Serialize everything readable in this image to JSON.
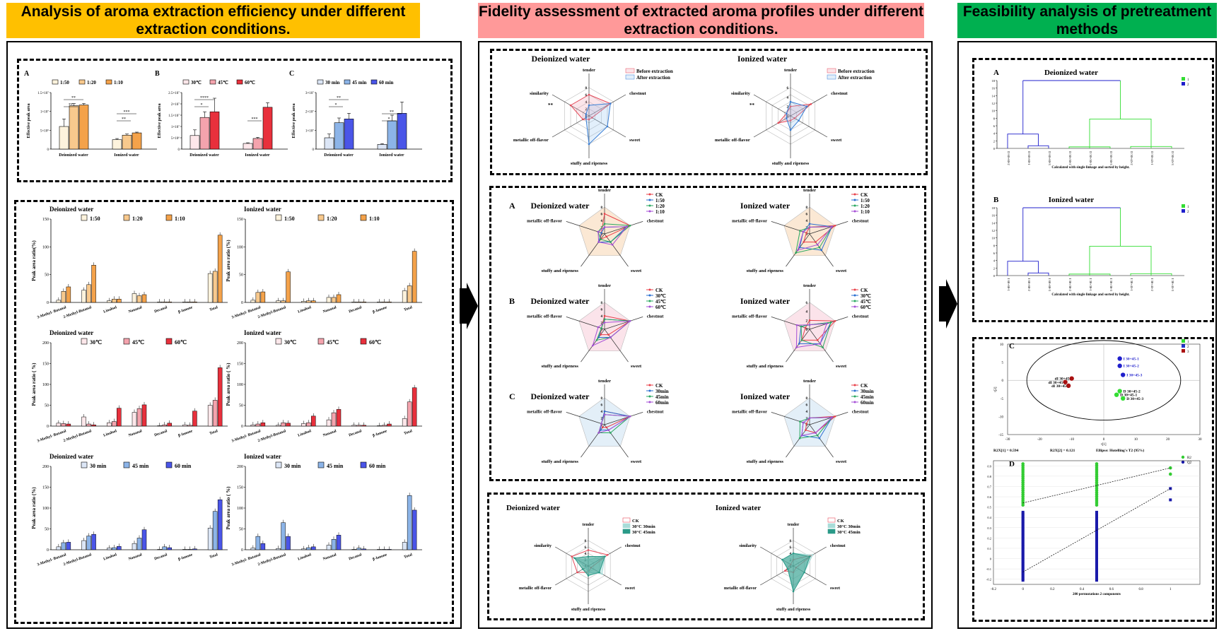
{
  "banners": [
    {
      "text": "Analysis of aroma extraction efficiency under different extraction conditions.",
      "color": "#ffc000"
    },
    {
      "text": "Fidelity assessment of extracted aroma profiles under different extraction conditions.",
      "color": "#ff9999"
    },
    {
      "text": "Feasibility analysis of pretreatment methods",
      "color": "#00b050"
    }
  ],
  "top_bars": [
    {
      "letter": "A",
      "legend": [
        "1:50",
        "1:20",
        "1:10"
      ],
      "colors": [
        "#fdf3dd",
        "#f8c98d",
        "#f4a24a"
      ],
      "ylabel": "Effective peak area",
      "yticks": [
        "0",
        "5×10⁶",
        "1×10⁷",
        "1.5×10⁷"
      ],
      "ymax": 15,
      "groups": [
        "Deionized water",
        "Ionized water"
      ],
      "values": [
        [
          6,
          11.5,
          11.7
        ],
        [
          2.5,
          3.7,
          4.3
        ]
      ],
      "errs": [
        [
          2,
          0.6,
          0.4
        ],
        [
          0.3,
          0.3,
          0.2
        ]
      ],
      "sig": [
        "**",
        "**",
        "**",
        "***"
      ]
    },
    {
      "letter": "B",
      "legend": [
        "30℃",
        "45℃",
        "60℃"
      ],
      "colors": [
        "#fde7ea",
        "#f4a3ad",
        "#e8303c"
      ],
      "ylabel": "Effective peak area",
      "yticks": [
        "0",
        "5×10⁶",
        "1×10⁷",
        "1.5×10⁷",
        "2×10⁷",
        "2.5×10⁷"
      ],
      "ymax": 25,
      "groups": [
        "Deionized water",
        "Ionized water"
      ],
      "values": [
        [
          6,
          14,
          16.5
        ],
        [
          2.5,
          4.7,
          18.5
        ]
      ],
      "errs": [
        [
          2.5,
          2.5,
          6
        ],
        [
          0.3,
          0.5,
          2
        ]
      ],
      "sig": [
        "*",
        "****",
        "***"
      ]
    },
    {
      "letter": "C",
      "legend": [
        "30 min",
        "45 min",
        "60 min"
      ],
      "colors": [
        "#dce6f6",
        "#8cb4e8",
        "#4a55e8"
      ],
      "ylabel": "Effective peak area",
      "yticks": [
        "0",
        "1×10⁷",
        "2×10⁷",
        "3×10⁷"
      ],
      "ymax": 30,
      "groups": [
        "Deionized water",
        "Ionized water"
      ],
      "values": [
        [
          6,
          14,
          16
        ],
        [
          2.5,
          15,
          19
        ]
      ],
      "errs": [
        [
          2,
          2.5,
          3
        ],
        [
          0.4,
          3,
          6
        ]
      ],
      "sig": [
        "*",
        "**",
        "*",
        "**"
      ]
    }
  ],
  "ratio_bars": [
    {
      "title": "Deionized water",
      "legend": [
        "1:50",
        "1:20",
        "1:10"
      ],
      "colors": [
        "#fdf3dd",
        "#f8c98d",
        "#f4a24a"
      ],
      "ylabel": "Peak area ratio(%)",
      "ymax": 150,
      "yticks": [
        "0",
        "50",
        "100",
        "150"
      ],
      "cats": [
        "3-Methyl- Butanal",
        "2-Methyl-Butanal",
        "Linalool",
        "Nonanal",
        "Decanal",
        "β-Ionone",
        "Total"
      ],
      "values": [
        [
          4,
          20,
          28
        ],
        [
          22,
          32,
          67
        ],
        [
          3,
          6,
          6
        ],
        [
          16,
          12,
          14
        ],
        [
          1,
          1,
          1
        ],
        [
          1,
          1,
          1
        ],
        [
          52,
          56,
          121
        ]
      ]
    },
    {
      "title": "Ionized water",
      "legend": [
        "1:50",
        "1:20",
        "1:10"
      ],
      "colors": [
        "#fdf3dd",
        "#f8c98d",
        "#f4a24a"
      ],
      "ylabel": "Peak area ratio (%)",
      "ymax": 150,
      "yticks": [
        "0",
        "50",
        "100",
        "150"
      ],
      "cats": [
        "3-Methyl- Butanal",
        "2-Methyl-Butanal",
        "Linalool",
        "Nonanal",
        "Decanal",
        "β-Ionone",
        "Total"
      ],
      "values": [
        [
          4,
          18,
          19
        ],
        [
          3,
          3,
          55
        ],
        [
          2,
          3,
          3
        ],
        [
          9,
          9,
          14
        ],
        [
          1,
          1,
          1
        ],
        [
          1,
          1,
          1
        ],
        [
          21,
          30,
          92
        ]
      ]
    },
    {
      "title": "Deionized water",
      "legend": [
        "30℃",
        "45℃",
        "60℃"
      ],
      "colors": [
        "#fde7ea",
        "#f4a3ad",
        "#e8303c"
      ],
      "ylabel": "Peak area ratio ( %)",
      "ymax": 200,
      "yticks": [
        "0",
        "50",
        "100",
        "150",
        "200"
      ],
      "cats": [
        "3-Methyl- Butanal",
        "2-Methyl-Butanal",
        "Linalool",
        "Nonanal",
        "Decanal",
        "β-Ionone",
        "Total"
      ],
      "values": [
        [
          7,
          6,
          5
        ],
        [
          22,
          5,
          3
        ],
        [
          8,
          11,
          43
        ],
        [
          33,
          42,
          51
        ],
        [
          1,
          3,
          7
        ],
        [
          3,
          2,
          36
        ],
        [
          50,
          62,
          140
        ]
      ]
    },
    {
      "title": "Ionized water",
      "legend": [
        "30℃",
        "45℃",
        "60℃"
      ],
      "colors": [
        "#fde7ea",
        "#f4a3ad",
        "#e8303c"
      ],
      "ylabel": "Peak area ratio ( %)",
      "ymax": 200,
      "yticks": [
        "0",
        "50",
        "100",
        "150",
        "200"
      ],
      "cats": [
        "3-Methyl- Butanal",
        "2-Methyl-Butanal",
        "Linalool",
        "Nonanal",
        "Decanal",
        "β-Ionone",
        "Total"
      ],
      "values": [
        [
          3,
          5,
          8
        ],
        [
          2,
          8,
          7
        ],
        [
          6,
          8,
          24
        ],
        [
          15,
          32,
          40
        ],
        [
          2,
          2,
          2
        ],
        [
          1,
          2,
          5
        ],
        [
          18,
          58,
          92
        ]
      ]
    },
    {
      "title": "Deionized water",
      "legend": [
        "30 min",
        "45 min",
        "60 min"
      ],
      "colors": [
        "#dce6f6",
        "#8cb4e8",
        "#4a55e8"
      ],
      "ylabel": "Peak area ratio (%)",
      "ymax": 200,
      "yticks": [
        "0",
        "50",
        "100",
        "150",
        "200"
      ],
      "cats": [
        "3-Methyl- Butanal",
        "2-Methyl-Butanal",
        "Linalool",
        "Nonanal",
        "Decanal",
        "β-Ionone",
        "Total"
      ],
      "values": [
        [
          7,
          17,
          18
        ],
        [
          22,
          33,
          37
        ],
        [
          4,
          5,
          8
        ],
        [
          15,
          28,
          48
        ],
        [
          1,
          7,
          5
        ],
        [
          1,
          1,
          2
        ],
        [
          52,
          92,
          120
        ]
      ]
    },
    {
      "title": "Ionized water",
      "legend": [
        "30 min",
        "45 min",
        "60 min"
      ],
      "colors": [
        "#dce6f6",
        "#8cb4e8",
        "#4a55e8"
      ],
      "ylabel": "Peak area ratio ( %)",
      "ymax": 200,
      "yticks": [
        "0",
        "50",
        "100",
        "150",
        "200"
      ],
      "cats": [
        "3-Methyl- Butanal",
        "2-Methyl-Butanal",
        "Linalool",
        "Nonanal",
        "Decanal",
        "β-Ionone",
        "Total"
      ],
      "values": [
        [
          4,
          32,
          15
        ],
        [
          3,
          65,
          32
        ],
        [
          2,
          5,
          7
        ],
        [
          11,
          25,
          35
        ],
        [
          1,
          4,
          2
        ],
        [
          1,
          1,
          1
        ],
        [
          18,
          130,
          95
        ]
      ]
    }
  ],
  "radar_top": [
    {
      "title": "Deionized water",
      "axes": [
        "tender",
        "chestnut",
        "sweet",
        "stuffy and ripeness",
        "metallic off-flavor",
        "similarity"
      ],
      "legend": [
        "Before extraction",
        "After extraction"
      ],
      "colors": [
        "#e64b5a",
        "#3a7fd5"
      ],
      "fills": [
        "rgba(240,150,170,0.25)",
        "rgba(140,190,240,0.25)"
      ],
      "max": 8,
      "ticks": [
        "0",
        "2",
        "4",
        "6",
        "8"
      ],
      "series": [
        [
          6,
          7,
          1,
          1,
          2,
          6
        ],
        [
          3,
          7,
          6,
          8,
          1,
          1
        ]
      ],
      "star": "**"
    },
    {
      "title": "Ionized water",
      "axes": [
        "tender",
        "chestnut",
        "sweet",
        "stuffy and ripeness",
        "metallic off-flavor",
        "similarity"
      ],
      "legend": [
        "Before extraction",
        "After extraction"
      ],
      "colors": [
        "#e64b5a",
        "#3a7fd5"
      ],
      "fills": [
        "rgba(240,150,170,0.25)",
        "rgba(140,190,240,0.25)"
      ],
      "max": 6,
      "ticks": [
        "0",
        "2",
        "4",
        "6"
      ],
      "series": [
        [
          2,
          5,
          1,
          1,
          3,
          1
        ],
        [
          3,
          4,
          2,
          3,
          1,
          1
        ]
      ],
      "star": "**"
    }
  ],
  "radar_mid": [
    {
      "letter": "A",
      "title": "Deionized water",
      "legend": [
        "CK",
        "1:50",
        "1:20",
        "1:10"
      ],
      "bg": "#fbe8d4",
      "max": 8,
      "ticks": [
        "0",
        "2",
        "4",
        "6",
        "8"
      ],
      "series": [
        [
          6,
          8,
          1,
          2,
          1
        ],
        [
          2,
          7,
          3,
          3,
          1
        ],
        [
          3,
          8,
          3,
          2,
          2
        ],
        [
          2,
          7,
          4,
          3,
          2
        ]
      ]
    },
    {
      "letter": "",
      "title": "Ionized water",
      "legend": [
        "CK",
        "1:50",
        "1:20",
        "1:10"
      ],
      "bg": "#fbe8d4",
      "max": 8,
      "ticks": [
        "0",
        "2",
        "4",
        "6",
        "8"
      ],
      "series": [
        [
          2,
          8,
          3,
          3,
          1
        ],
        [
          3,
          7,
          6,
          5,
          2
        ],
        [
          2,
          7,
          5,
          7,
          3
        ],
        [
          2,
          7,
          4,
          6,
          2
        ]
      ]
    },
    {
      "letter": "B",
      "title": "Deionized water",
      "legend": [
        "CK",
        "30℃",
        "45℃",
        "60℃"
      ],
      "bg": "#fbe3ea",
      "max": 8,
      "ticks": [
        "0",
        "2",
        "4",
        "6",
        "8"
      ],
      "series": [
        [
          4,
          8,
          2,
          2,
          1
        ],
        [
          3,
          8,
          3,
          3,
          1
        ],
        [
          3,
          8,
          3,
          4,
          1
        ],
        [
          2,
          8,
          3,
          6,
          2
        ]
      ]
    },
    {
      "letter": "",
      "title": "Ionized water",
      "legend": [
        "CK",
        "30℃",
        "45℃",
        "60℃"
      ],
      "bg": "#fbe3ea",
      "max": 6,
      "ticks": [
        "0",
        "2",
        "4",
        "6"
      ],
      "series": [
        [
          2,
          6,
          3,
          3,
          1
        ],
        [
          1,
          5,
          4,
          4,
          2
        ],
        [
          1,
          5,
          5,
          3,
          2
        ],
        [
          1,
          4,
          4,
          5,
          3
        ]
      ]
    },
    {
      "letter": "C",
      "title": "Deionized water",
      "legend": [
        "CK",
        "30min",
        "45min",
        "60min"
      ],
      "bg": "#e3eff8",
      "max": 8,
      "ticks": [
        "0",
        "2",
        "4",
        "6",
        "8"
      ],
      "series": [
        [
          4,
          8,
          1,
          1,
          1
        ],
        [
          4,
          8,
          2,
          2,
          1
        ],
        [
          3,
          8,
          3,
          3,
          1
        ],
        [
          3,
          8,
          2,
          3,
          1
        ]
      ]
    },
    {
      "letter": "",
      "title": "Ionized water",
      "legend": [
        "CK",
        "30min",
        "45min",
        "60min"
      ],
      "bg": "#e3eff8",
      "max": 8,
      "ticks": [
        "0",
        "2",
        "4",
        "6",
        "8"
      ],
      "series": [
        [
          2,
          8,
          3,
          2,
          1
        ],
        [
          2,
          7,
          5,
          4,
          2
        ],
        [
          2,
          7,
          4,
          5,
          3
        ],
        [
          2,
          7,
          3,
          4,
          2
        ]
      ]
    }
  ],
  "radar_mid_axes": [
    "tender",
    "chestnut",
    "sweet",
    "stuffy and ripeness",
    "metallic off-flavor"
  ],
  "radar_mid_colors": [
    "#e8404a",
    "#2a6fd0",
    "#2aa860",
    "#a64fd6"
  ],
  "radar_bottom": [
    {
      "title": "Deionized water",
      "legend": [
        "CK",
        "30°C 30min",
        "30°C 45min"
      ],
      "max": 8,
      "ticks": [
        "0",
        "2",
        "4",
        "6",
        "8"
      ],
      "series": [
        [
          5,
          7,
          1,
          2,
          4,
          6
        ],
        [
          2,
          6,
          5,
          2,
          1,
          4
        ],
        [
          3,
          6,
          4,
          3,
          2,
          5
        ]
      ]
    },
    {
      "title": "Ionized water",
      "legend": [
        "CK",
        "30°C 30min",
        "30°C 45min"
      ],
      "max": 8,
      "ticks": [
        "0",
        "2",
        "4",
        "6",
        "8"
      ],
      "series": [
        [
          2,
          7,
          1,
          2,
          3,
          1
        ],
        [
          4,
          7,
          4,
          7,
          2,
          4
        ],
        [
          4,
          6,
          4,
          8,
          2,
          4
        ]
      ]
    }
  ],
  "radar_bottom_axes": [
    "tender",
    "chestnut",
    "sweet",
    "stuffy and ripeness",
    "metallic off-flavor",
    "similarity"
  ],
  "radar_bottom_colors": [
    "#e64b5a",
    "#a8dcd8",
    "#2b9a88"
  ],
  "dendro": [
    {
      "letter": "A",
      "title": "Deionized water",
      "caption": "Calculated with single linkage and sorted by height.",
      "legend": [
        "1",
        "2"
      ],
      "yticks": [
        "0",
        "2",
        "4",
        "6",
        "8",
        "10",
        "12",
        "14",
        "16",
        "18"
      ],
      "leaves": [
        "D 60+60-2",
        "D 60+60-1",
        "D 60+60-3",
        "D 30+30-2",
        "D 30+30-1",
        "D 30+30-3",
        "D 30+45-2",
        "D 30+45-1",
        "D 30+45-3"
      ]
    },
    {
      "letter": "B",
      "title": "Ionized water",
      "caption": "Calculated with single linkage and sorted by height.",
      "legend": [
        "1",
        "2"
      ],
      "yticks": [
        "0",
        "2",
        "4",
        "6",
        "8",
        "10",
        "12",
        "14",
        "16",
        "18"
      ],
      "leaves": [
        "I 60+60-1",
        "I 60+60-2",
        "I 60+60-3",
        "I 30+30-2",
        "I 30+30-1",
        "I 30+30-3",
        "I 30+45-1",
        "I 30+45-2",
        "I 30+45-3"
      ]
    }
  ],
  "pca": {
    "letter": "C",
    "legend": [
      "1",
      "2",
      "3"
    ],
    "legend_colors": [
      "#33dd33",
      "#2233cc",
      "#aa1111"
    ],
    "xticks": [
      "-30",
      "-20",
      "-10",
      "0",
      "10",
      "20",
      "30"
    ],
    "yticks": [
      "-15",
      "-10",
      "-5",
      "0",
      "5",
      "10"
    ],
    "xlabel": "t[1]",
    "ylabel": "t[2]",
    "footer": [
      "R2X[1] = 0.594",
      "R2X[2] = 0.121",
      "Ellipse: Hotelling's T2 (95%)"
    ],
    "points": [
      {
        "label": "I 30+45-1",
        "x": 5,
        "y": 6,
        "g": 1
      },
      {
        "label": "I 30+45-2",
        "x": 5,
        "y": 4,
        "g": 1
      },
      {
        "label": "I 30+45-3",
        "x": 6,
        "y": 1.5,
        "g": 1
      },
      {
        "label": "D 30+45-2",
        "x": 5,
        "y": -3,
        "g": 0
      },
      {
        "label": "D 30+45-1",
        "x": 4,
        "y": -4,
        "g": 0
      },
      {
        "label": "D 30+45-3",
        "x": 6,
        "y": -5,
        "g": 0
      },
      {
        "label": "dI 30+45-",
        "x": -10,
        "y": 0.5,
        "g": 2
      },
      {
        "label": "dI 30+45-",
        "x": -11,
        "y": -1.5,
        "g": 2
      },
      {
        "label": "dI 30+45-",
        "x": -12,
        "y": -0.5,
        "g": 2
      }
    ]
  },
  "perm": {
    "letter": "D",
    "legend": [
      "R2",
      "Q2"
    ],
    "colors": [
      "#33cc33",
      "#1a1aaa"
    ],
    "xticks": [
      "-0.2",
      "0",
      "0.2",
      "0.4",
      "0.6",
      "0.8",
      "1"
    ],
    "yticks": [
      "-0.2",
      "-0.1",
      "0",
      "0.1",
      "0.2",
      "0.3",
      "0.4",
      "0.5",
      "0.6",
      "0.7",
      "0.8",
      "0.9"
    ],
    "xlabel": "200 permutations 2 components"
  }
}
